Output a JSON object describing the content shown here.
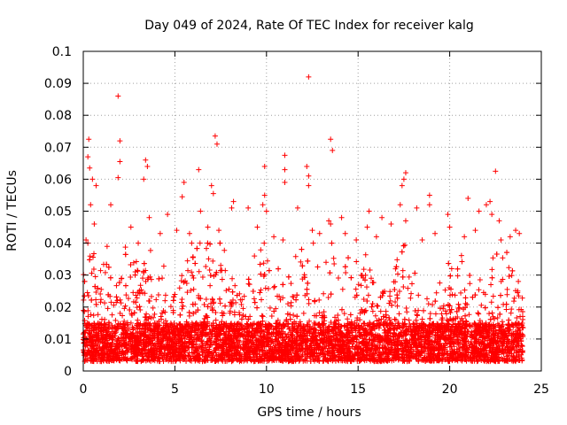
{
  "chart_data": {
    "type": "scatter",
    "title": "Day 049 of 2024, Rate Of TEC Index for receiver kalg",
    "xlabel": "GPS time / hours",
    "ylabel": "ROTI / TECUs",
    "xlim": [
      0,
      25
    ],
    "ylim": [
      0,
      0.1
    ],
    "xticks": [
      0,
      5,
      10,
      15,
      20,
      25
    ],
    "xtick_labels": [
      "0",
      "5",
      "10",
      "15",
      "20",
      "25"
    ],
    "yticks": [
      0,
      0.01,
      0.02,
      0.03,
      0.04,
      0.05,
      0.06,
      0.07,
      0.08,
      0.09,
      0.1
    ],
    "ytick_labels": [
      "0",
      "0.01",
      "0.02",
      "0.03",
      "0.04",
      "0.05",
      "0.06",
      "0.07",
      "0.08",
      "0.09",
      "0.1"
    ],
    "grid": true,
    "marker": "+",
    "color": "#ff0000",
    "data_extent_hours": [
      0,
      24
    ],
    "series": [
      {
        "name": "ROTI",
        "points": [
          [
            1.9,
            0.086
          ],
          [
            12.3,
            0.092
          ],
          [
            0.3,
            0.0725
          ],
          [
            2.0,
            0.072
          ],
          [
            7.2,
            0.0735
          ],
          [
            7.3,
            0.071
          ],
          [
            13.5,
            0.0725
          ],
          [
            13.6,
            0.069
          ],
          [
            3.4,
            0.066
          ],
          [
            3.5,
            0.064
          ],
          [
            6.3,
            0.063
          ],
          [
            11.0,
            0.0675
          ],
          [
            0.25,
            0.067
          ],
          [
            0.35,
            0.0635
          ],
          [
            2.0,
            0.0655
          ],
          [
            9.9,
            0.064
          ],
          [
            11.0,
            0.063
          ],
          [
            12.2,
            0.064
          ],
          [
            12.3,
            0.061
          ],
          [
            17.6,
            0.062
          ],
          [
            17.5,
            0.06
          ],
          [
            22.5,
            0.0625
          ],
          [
            0.5,
            0.06
          ],
          [
            0.7,
            0.058
          ],
          [
            1.9,
            0.0605
          ],
          [
            3.3,
            0.06
          ],
          [
            5.5,
            0.059
          ],
          [
            7.0,
            0.058
          ],
          [
            11.0,
            0.059
          ],
          [
            17.4,
            0.058
          ],
          [
            18.9,
            0.055
          ],
          [
            12.3,
            0.058
          ],
          [
            7.1,
            0.0555
          ],
          [
            5.4,
            0.0545
          ],
          [
            9.9,
            0.055
          ],
          [
            9.8,
            0.052
          ],
          [
            17.3,
            0.052
          ],
          [
            21.0,
            0.054
          ],
          [
            22.2,
            0.053
          ],
          [
            22.0,
            0.052
          ],
          [
            1.5,
            0.052
          ],
          [
            0.4,
            0.052
          ],
          [
            8.2,
            0.053
          ],
          [
            8.1,
            0.051
          ],
          [
            9.0,
            0.051
          ],
          [
            10.0,
            0.05
          ],
          [
            11.7,
            0.051
          ],
          [
            14.1,
            0.048
          ],
          [
            15.6,
            0.05
          ],
          [
            16.3,
            0.048
          ],
          [
            18.2,
            0.051
          ],
          [
            18.9,
            0.052
          ],
          [
            19.9,
            0.049
          ],
          [
            21.6,
            0.05
          ],
          [
            23.6,
            0.044
          ],
          [
            23.8,
            0.043
          ],
          [
            3.6,
            0.048
          ],
          [
            4.6,
            0.049
          ],
          [
            6.4,
            0.05
          ],
          [
            13.4,
            0.047
          ],
          [
            13.5,
            0.046
          ],
          [
            15.5,
            0.045
          ],
          [
            16.0,
            0.042
          ],
          [
            16.8,
            0.046
          ],
          [
            17.6,
            0.047
          ],
          [
            20.0,
            0.045
          ],
          [
            21.4,
            0.044
          ],
          [
            22.3,
            0.049
          ],
          [
            22.7,
            0.047
          ],
          [
            0.15,
            0.041
          ],
          [
            0.25,
            0.04
          ],
          [
            0.6,
            0.046
          ],
          [
            1.3,
            0.039
          ],
          [
            2.6,
            0.045
          ],
          [
            3.0,
            0.04
          ],
          [
            4.2,
            0.043
          ],
          [
            5.1,
            0.044
          ],
          [
            5.8,
            0.043
          ],
          [
            6.8,
            0.045
          ],
          [
            7.4,
            0.044
          ],
          [
            9.5,
            0.045
          ],
          [
            10.4,
            0.042
          ],
          [
            10.9,
            0.041
          ],
          [
            12.5,
            0.044
          ],
          [
            12.9,
            0.043
          ],
          [
            14.3,
            0.043
          ],
          [
            14.9,
            0.041
          ],
          [
            18.5,
            0.041
          ],
          [
            19.2,
            0.043
          ],
          [
            20.8,
            0.042
          ],
          [
            22.8,
            0.041
          ],
          [
            23.3,
            0.042
          ]
        ],
        "dense_band": {
          "x_range": [
            0,
            24
          ],
          "y_range": [
            0.003,
            0.015
          ],
          "typical_upper": 0.04
        }
      }
    ]
  }
}
